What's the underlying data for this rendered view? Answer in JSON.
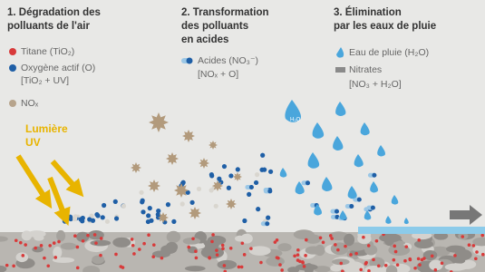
{
  "steps": [
    {
      "title": [
        "1. Dégradation des",
        "polluants de l'air"
      ],
      "legend": [
        [
          "Titane (TiO₂)"
        ],
        [
          "Oxygène actif (O)",
          "[TiO₂ + UV]"
        ],
        [
          "NOₓ"
        ]
      ]
    },
    {
      "title": [
        "2. Transformation",
        "des polluants",
        "en acides"
      ],
      "legend": [
        [
          "Acides (NO₃⁻)",
          "[NOₓ + O]"
        ]
      ]
    },
    {
      "title": [
        "3. Élimination",
        "par les eaux de pluie"
      ],
      "legend": [
        [
          "Eau de pluie (H₂O)"
        ],
        [
          "Nitrates",
          "[NO₃ + H₂O]"
        ]
      ]
    }
  ],
  "light_label": [
    "Lumière",
    "UV"
  ],
  "drop_label": "H₂O"
}
